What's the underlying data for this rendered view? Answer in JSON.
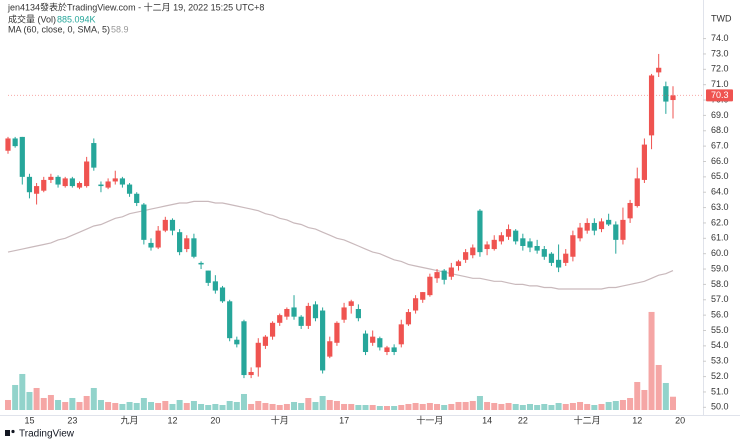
{
  "header": {
    "author_line": "jen4134發表於TradingView.com - 十二月 19, 2022 15:25 UTC+8",
    "volume_name": "成交量 (Vol)",
    "volume_value": "885.094K",
    "ma_name": "MA (60, close, 0, SMA, 5)",
    "ma_value": 58.9,
    "logo": "TradingView"
  },
  "chart_data": {
    "type": "candlestick",
    "currency": "TWD",
    "last_price": 70.3,
    "categories": [
      null,
      null,
      null,
      "15",
      null,
      null,
      null,
      null,
      null,
      "23",
      null,
      null,
      null,
      null,
      null,
      null,
      null,
      "九月",
      null,
      null,
      null,
      null,
      null,
      "12",
      null,
      null,
      null,
      null,
      null,
      "20",
      null,
      null,
      null,
      null,
      null,
      null,
      null,
      null,
      "十月",
      null,
      null,
      null,
      null,
      null,
      null,
      null,
      null,
      "17",
      null,
      null,
      null,
      null,
      null,
      null,
      null,
      null,
      null,
      null,
      null,
      "十一月",
      null,
      null,
      null,
      null,
      null,
      null,
      null,
      "14",
      null,
      null,
      null,
      null,
      "22",
      null,
      null,
      null,
      null,
      null,
      null,
      null,
      null,
      "十二月",
      null,
      null,
      null,
      null,
      null,
      null,
      "12",
      null,
      null,
      null,
      null,
      null,
      "20"
    ],
    "open": [
      66.7,
      67.5,
      67.6,
      65.0,
      63.9,
      64.1,
      64.8,
      65.0,
      64.4,
      64.9,
      64.3,
      64.4,
      67.2,
      64.5,
      64.3,
      64.7,
      64.9,
      64.5,
      63.9,
      63.2,
      60.7,
      60.4,
      61.5,
      62.2,
      61.4,
      60.3,
      61.0,
      59.4,
      58.9,
      58.2,
      57.8,
      56.9,
      54.4,
      55.6,
      52.1,
      52.6,
      54.0,
      54.6,
      55.5,
      55.9,
      56.5,
      55.9,
      55.3,
      56.7,
      56.3,
      53.3,
      54.2,
      55.7,
      56.6,
      56.4,
      54.8,
      54.2,
      54.5,
      53.6,
      53.9,
      54.1,
      55.4,
      56.3,
      57.0,
      57.3,
      58.4,
      58.9,
      58.5,
      59.2,
      59.6,
      59.9,
      62.8,
      60.3,
      60.3,
      60.8,
      61.1,
      61.5,
      61.0,
      60.8,
      60.5,
      60.3,
      60.0,
      59.6,
      59.4,
      59.8,
      61.0,
      61.5,
      62.0,
      61.6,
      62.2,
      61.9,
      60.9,
      62.3,
      63.1,
      64.8,
      67.7,
      71.8,
      70.9,
      70.0,
      null
    ],
    "high": [
      67.6,
      67.6,
      67.6,
      65.2,
      64.6,
      65.0,
      65.2,
      65.1,
      65.0,
      65.0,
      64.7,
      66.3,
      67.5,
      64.7,
      64.9,
      65.4,
      65.0,
      64.6,
      64.0,
      63.3,
      61.0,
      61.8,
      62.4,
      62.3,
      61.6,
      61.2,
      61.3,
      59.5,
      58.9,
      58.6,
      57.9,
      57.0,
      54.6,
      55.7,
      52.6,
      54.5,
      54.7,
      55.6,
      56.1,
      56.5,
      57.3,
      56.0,
      56.8,
      56.9,
      56.5,
      54.6,
      55.6,
      56.8,
      57.0,
      56.7,
      55.0,
      55.0,
      54.6,
      54.0,
      54.1,
      55.7,
      56.4,
      57.3,
      57.5,
      58.7,
      59.0,
      59.0,
      59.4,
      59.6,
      60.3,
      60.6,
      62.9,
      60.8,
      61.2,
      61.4,
      61.9,
      61.6,
      61.3,
      61.0,
      60.9,
      60.5,
      60.1,
      60.6,
      60.3,
      61.5,
      62.0,
      62.3,
      62.3,
      62.3,
      62.6,
      62.1,
      63.0,
      63.5,
      65.6,
      67.5,
      71.7,
      73.0,
      71.2,
      70.9,
      null
    ],
    "low": [
      66.5,
      66.9,
      64.5,
      63.6,
      63.2,
      64.0,
      64.6,
      64.3,
      64.3,
      64.3,
      64.2,
      64.3,
      65.4,
      64.0,
      64.2,
      64.5,
      64.3,
      63.7,
      63.1,
      60.6,
      60.2,
      60.3,
      61.4,
      61.2,
      59.9,
      60.1,
      59.7,
      59.0,
      57.9,
      57.4,
      56.8,
      54.3,
      53.9,
      51.9,
      51.9,
      52.0,
      53.8,
      54.4,
      55.3,
      55.7,
      55.7,
      55.1,
      55.1,
      55.6,
      52.2,
      53.2,
      54.0,
      55.5,
      56.1,
      55.6,
      53.4,
      54.0,
      53.7,
      53.4,
      53.4,
      53.9,
      55.3,
      56.1,
      56.8,
      57.2,
      58.1,
      58.0,
      58.3,
      58.9,
      59.4,
      59.7,
      59.8,
      59.9,
      60.2,
      60.6,
      60.9,
      60.6,
      60.2,
      60.1,
      60.0,
      59.6,
      59.2,
      58.8,
      59.2,
      59.5,
      60.8,
      61.3,
      61.2,
      61.4,
      61.8,
      60.0,
      60.6,
      62.0,
      63.0,
      64.6,
      66.8,
      71.5,
      69.1,
      68.8,
      null
    ],
    "close": [
      67.5,
      67.0,
      65.0,
      64.0,
      64.4,
      64.8,
      65.0,
      64.5,
      64.9,
      64.4,
      64.6,
      66.0,
      65.6,
      64.4,
      64.7,
      64.9,
      64.5,
      63.9,
      63.3,
      60.9,
      60.4,
      61.5,
      62.2,
      61.5,
      60.1,
      61.0,
      59.8,
      59.3,
      58.1,
      57.6,
      56.9,
      54.5,
      54.1,
      52.1,
      52.3,
      54.2,
      54.6,
      55.5,
      56.0,
      56.4,
      55.9,
      55.3,
      56.6,
      55.8,
      52.4,
      54.3,
      55.5,
      56.5,
      56.9,
      55.8,
      53.6,
      54.6,
      53.9,
      53.9,
      53.6,
      55.4,
      56.2,
      57.1,
      57.5,
      58.5,
      58.8,
      58.3,
      59.1,
      59.5,
      60.1,
      60.4,
      60.1,
      60.6,
      60.9,
      61.2,
      61.6,
      60.8,
      60.5,
      60.4,
      60.2,
      59.8,
      59.4,
      59.1,
      60.0,
      61.2,
      61.7,
      62.0,
      61.5,
      62.1,
      61.9,
      60.9,
      62.2,
      63.3,
      64.9,
      67.1,
      71.6,
      72.1,
      69.9,
      70.3,
      null
    ],
    "volume": [
      667000,
      1667500,
      2401200,
      1200600,
      1467400,
      800400,
      1000500,
      667000,
      533600,
      800400,
      533600,
      933800,
      1467400,
      667000,
      533600,
      466900,
      400200,
      533600,
      466900,
      800400,
      533600,
      466900,
      600300,
      400200,
      667000,
      466900,
      600300,
      400200,
      333500,
      400200,
      333500,
      600300,
      533600,
      1067200,
      400200,
      600300,
      466900,
      400200,
      333500,
      400200,
      533600,
      466900,
      800400,
      533600,
      933800,
      667000,
      600300,
      400200,
      400200,
      333500,
      333500,
      333500,
      266800,
      266800,
      266800,
      333500,
      400200,
      466900,
      400200,
      466900,
      400200,
      333500,
      400200,
      533600,
      533600,
      600300,
      933800,
      533600,
      466900,
      400200,
      466900,
      400200,
      333500,
      400200,
      333500,
      400200,
      333500,
      466900,
      400200,
      466900,
      533600,
      400200,
      333500,
      400200,
      533600,
      600300,
      667000,
      800400,
      1867600,
      1334000,
      6536600,
      3001500,
      1800900,
      885094,
      null
    ],
    "ma": [
      60.1,
      60.2,
      60.3,
      60.4,
      60.5,
      60.6,
      60.7,
      60.9,
      61.0,
      61.2,
      61.4,
      61.6,
      61.8,
      61.9,
      62.1,
      62.3,
      62.4,
      62.6,
      62.7,
      62.8,
      62.9,
      63.0,
      63.1,
      63.2,
      63.3,
      63.3,
      63.4,
      63.4,
      63.4,
      63.3,
      63.3,
      63.2,
      63.1,
      63.0,
      62.9,
      62.8,
      62.6,
      62.5,
      62.3,
      62.2,
      62.0,
      61.9,
      61.7,
      61.6,
      61.4,
      61.2,
      61.0,
      60.9,
      60.7,
      60.5,
      60.3,
      60.1,
      60.0,
      59.8,
      59.6,
      59.5,
      59.3,
      59.2,
      59.1,
      59.0,
      58.9,
      58.8,
      58.7,
      58.6,
      58.5,
      58.4,
      58.4,
      58.3,
      58.2,
      58.2,
      58.1,
      58.0,
      58.0,
      57.9,
      57.9,
      57.8,
      57.8,
      57.7,
      57.7,
      57.7,
      57.7,
      57.7,
      57.7,
      57.7,
      57.8,
      57.8,
      57.9,
      58.0,
      58.1,
      58.2,
      58.4,
      58.6,
      58.7,
      58.9,
      null
    ],
    "ylim": [
      49.5,
      75.6
    ],
    "volume_ylim": [
      0,
      9000000
    ],
    "yticks": [
      {
        "value": 50,
        "label": "50.0"
      },
      {
        "value": 51,
        "label": "51.0"
      },
      {
        "value": 52,
        "label": "52.0"
      },
      {
        "value": 53,
        "label": "53.0"
      },
      {
        "value": 54,
        "label": "54.0"
      },
      {
        "value": 55,
        "label": "55.0"
      },
      {
        "value": 56,
        "label": "56.0"
      },
      {
        "value": 57,
        "label": "57.0"
      },
      {
        "value": 58,
        "label": "58.0"
      },
      {
        "value": 59,
        "label": "59.0"
      },
      {
        "value": 60,
        "label": "60.0"
      },
      {
        "value": 61,
        "label": "61.0"
      },
      {
        "value": 62,
        "label": "62.0"
      },
      {
        "value": 63,
        "label": "63.0"
      },
      {
        "value": 64,
        "label": "64.0"
      },
      {
        "value": 65,
        "label": "65.0"
      },
      {
        "value": 66,
        "label": "66.0"
      },
      {
        "value": 67,
        "label": "67.0"
      },
      {
        "value": 68,
        "label": "68.0"
      },
      {
        "value": 69,
        "label": "69.0"
      },
      {
        "value": 70,
        "label": "70.0"
      },
      {
        "value": 71,
        "label": "71.0"
      },
      {
        "value": 72,
        "label": "72.0"
      },
      {
        "value": 73,
        "label": "73.0"
      },
      {
        "value": 74,
        "label": "74.0"
      }
    ],
    "up_color": "#ef5350",
    "down_color": "#26a69a",
    "volume_up_color": "#f5a6a5",
    "volume_down_color": "#92d3cb",
    "ma_color": "#c9b9bc"
  }
}
